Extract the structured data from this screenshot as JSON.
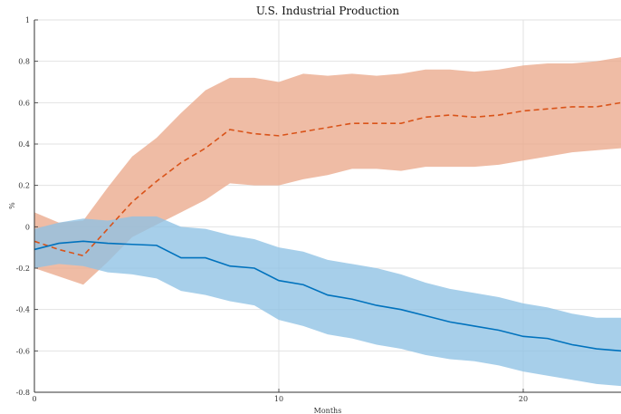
{
  "chart_data": {
    "type": "area",
    "title": "U.S. Industrial Production",
    "xlabel": "Months",
    "ylabel": "%",
    "xlim": [
      0,
      24
    ],
    "ylim": [
      -0.8,
      1
    ],
    "xticks": [
      "0",
      "10",
      "20"
    ],
    "yticks": [
      "-0.8",
      "-0.6",
      "-0.4",
      "-0.2",
      "0",
      "0.2",
      "0.4",
      "0.6",
      "0.8",
      "1"
    ],
    "grid": true,
    "x": [
      0,
      1,
      2,
      3,
      4,
      5,
      6,
      7,
      8,
      9,
      10,
      11,
      12,
      13,
      14,
      15,
      16,
      17,
      18,
      19,
      20,
      21,
      22,
      23,
      24
    ],
    "series": [
      {
        "color": "#d95319",
        "band_color": "#eba98c",
        "line_style": "dashed",
        "median": [
          -0.07,
          -0.11,
          -0.14,
          -0.01,
          0.12,
          0.22,
          0.31,
          0.38,
          0.47,
          0.45,
          0.44,
          0.46,
          0.48,
          0.5,
          0.5,
          0.5,
          0.53,
          0.54,
          0.53,
          0.54,
          0.56,
          0.57,
          0.58,
          0.58,
          0.6
        ],
        "upper": [
          0.07,
          0.02,
          0.03,
          0.19,
          0.34,
          0.43,
          0.55,
          0.66,
          0.72,
          0.72,
          0.7,
          0.74,
          0.73,
          0.74,
          0.73,
          0.74,
          0.76,
          0.76,
          0.75,
          0.76,
          0.78,
          0.79,
          0.79,
          0.8,
          0.82
        ],
        "lower": [
          -0.2,
          -0.24,
          -0.28,
          -0.17,
          -0.05,
          0.01,
          0.07,
          0.13,
          0.21,
          0.2,
          0.2,
          0.23,
          0.25,
          0.28,
          0.28,
          0.27,
          0.29,
          0.29,
          0.29,
          0.3,
          0.32,
          0.34,
          0.36,
          0.37,
          0.38
        ]
      },
      {
        "color": "#0072bd",
        "band_color": "#8ec1e4",
        "line_style": "solid",
        "median": [
          -0.11,
          -0.08,
          -0.07,
          -0.08,
          -0.085,
          -0.09,
          -0.15,
          -0.15,
          -0.19,
          -0.2,
          -0.26,
          -0.28,
          -0.33,
          -0.35,
          -0.38,
          -0.4,
          -0.43,
          -0.46,
          -0.48,
          -0.5,
          -0.53,
          -0.54,
          -0.57,
          -0.59,
          -0.6
        ],
        "upper": [
          -0.01,
          0.02,
          0.04,
          0.03,
          0.05,
          0.05,
          0.0,
          -0.01,
          -0.04,
          -0.06,
          -0.1,
          -0.12,
          -0.16,
          -0.18,
          -0.2,
          -0.23,
          -0.27,
          -0.3,
          -0.32,
          -0.34,
          -0.37,
          -0.39,
          -0.42,
          -0.44,
          -0.44
        ],
        "lower": [
          -0.2,
          -0.18,
          -0.19,
          -0.22,
          -0.23,
          -0.25,
          -0.31,
          -0.33,
          -0.36,
          -0.38,
          -0.45,
          -0.48,
          -0.52,
          -0.54,
          -0.57,
          -0.59,
          -0.62,
          -0.64,
          -0.65,
          -0.67,
          -0.7,
          -0.72,
          -0.74,
          -0.76,
          -0.77
        ]
      }
    ]
  }
}
